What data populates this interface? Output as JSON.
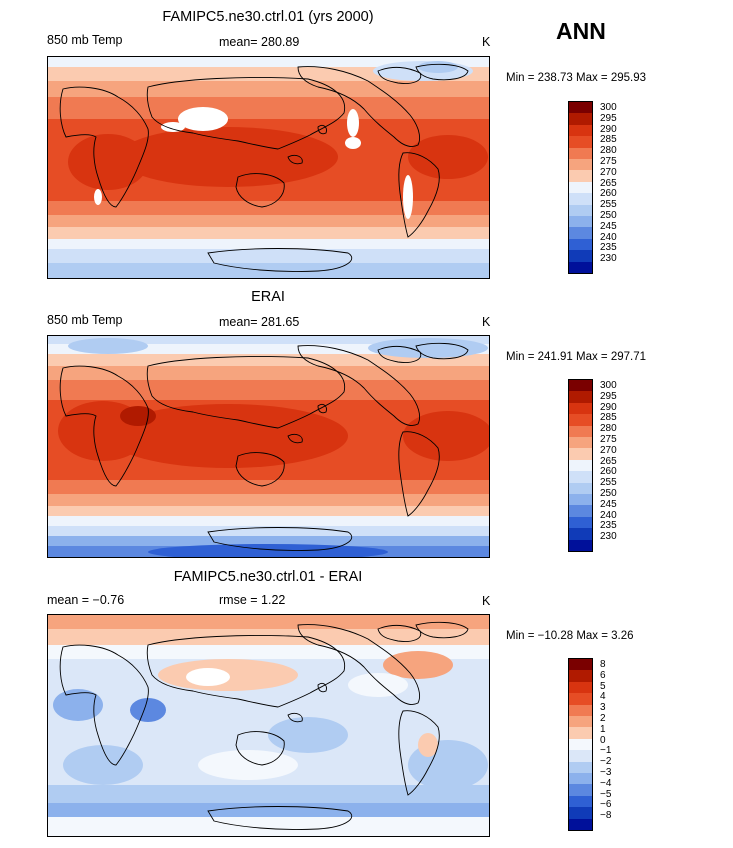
{
  "season": "ANN",
  "panels": [
    {
      "id": "model",
      "title": "FAMIPC5.ne30.ctrl.01 (yrs 2000)",
      "left_label": "850 mb Temp",
      "center_label": "mean= 280.89",
      "units": "K",
      "minmax": "Min = 238.73  Max = 295.93",
      "colorbar_levels": [
        "300",
        "295",
        "290",
        "285",
        "280",
        "275",
        "270",
        "265",
        "260",
        "255",
        "250",
        "245",
        "240",
        "235",
        "230"
      ]
    },
    {
      "id": "obs",
      "title": "ERAI",
      "left_label": "850 mb Temp",
      "center_label": "mean= 281.65",
      "units": "K",
      "minmax": "Min = 241.91  Max = 297.71",
      "colorbar_levels": [
        "300",
        "295",
        "290",
        "285",
        "280",
        "275",
        "270",
        "265",
        "260",
        "255",
        "250",
        "245",
        "240",
        "235",
        "230"
      ]
    },
    {
      "id": "diff",
      "title": "FAMIPC5.ne30.ctrl.01 - ERAI",
      "left_label": "mean =   −0.76",
      "center_label": "rmse =    1.22",
      "units": "K",
      "minmax": "Min = −10.28  Max =    3.26",
      "colorbar_levels": [
        "8",
        "6",
        "5",
        "4",
        "3",
        "2",
        "1",
        "0",
        "−1",
        "−2",
        "−3",
        "−4",
        "−5",
        "−6",
        "−8"
      ]
    }
  ],
  "colors": {
    "abs": [
      "#7a0000",
      "#b01a00",
      "#d83410",
      "#e64d25",
      "#f07a52",
      "#f6a47e",
      "#fbcbb0",
      "#eef4fc",
      "#cfe0f8",
      "#b0ccf2",
      "#8cb1ec",
      "#5c88e0",
      "#2f60d4",
      "#103bb8",
      "#00109a"
    ],
    "diff": [
      "#7a0000",
      "#b01a00",
      "#d83410",
      "#e64d25",
      "#f07a52",
      "#f6a47e",
      "#fbcbb0",
      "#f4f8fd",
      "#dbe7f8",
      "#b0ccf2",
      "#8cb1ec",
      "#5c88e0",
      "#2f60d4",
      "#103bb8",
      "#00109a"
    ]
  },
  "chart_data": [
    {
      "type": "heatmap",
      "title": "FAMIPC5.ne30.ctrl.01 (yrs 2000)",
      "variable": "850 mb Temp",
      "units": "K",
      "mean": 280.89,
      "min": 238.73,
      "max": 295.93,
      "levels": [
        230,
        235,
        240,
        245,
        250,
        255,
        260,
        265,
        270,
        275,
        280,
        285,
        290,
        295,
        300
      ],
      "xlim": [
        0,
        360
      ],
      "ylim": [
        -90,
        90
      ]
    },
    {
      "type": "heatmap",
      "title": "ERAI",
      "variable": "850 mb Temp",
      "units": "K",
      "mean": 281.65,
      "min": 241.91,
      "max": 297.71,
      "levels": [
        230,
        235,
        240,
        245,
        250,
        255,
        260,
        265,
        270,
        275,
        280,
        285,
        290,
        295,
        300
      ],
      "xlim": [
        0,
        360
      ],
      "ylim": [
        -90,
        90
      ]
    },
    {
      "type": "heatmap",
      "title": "FAMIPC5.ne30.ctrl.01 - ERAI",
      "units": "K",
      "mean": -0.76,
      "rmse": 1.22,
      "min": -10.28,
      "max": 3.26,
      "levels": [
        -8,
        -6,
        -5,
        -4,
        -3,
        -2,
        -1,
        0,
        1,
        2,
        3,
        4,
        5,
        6,
        8
      ],
      "xlim": [
        0,
        360
      ],
      "ylim": [
        -90,
        90
      ]
    }
  ]
}
